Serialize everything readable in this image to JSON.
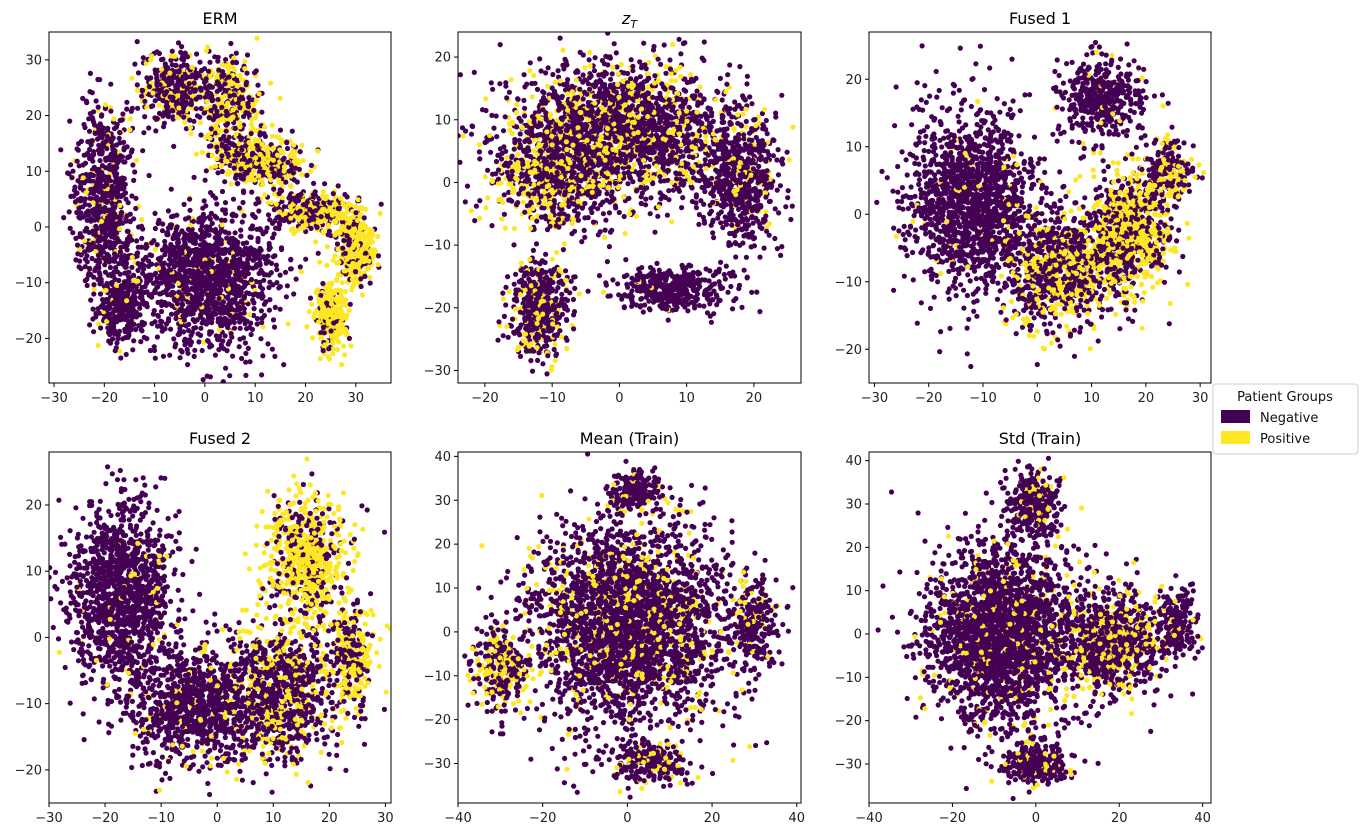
{
  "legend": {
    "title": "Patient Groups",
    "entries": [
      {
        "label": "Negative",
        "color": "#440154"
      },
      {
        "label": "Positive",
        "color": "#fde725"
      }
    ]
  },
  "chart_data": [
    {
      "type": "scatter",
      "title": "ERM",
      "title_math": false,
      "xlim": [
        -31,
        37
      ],
      "ylim": [
        -28,
        35
      ],
      "xticks": [
        -30,
        -20,
        -10,
        0,
        10,
        20,
        30
      ],
      "xtick_labels": [
        "−30",
        "−20",
        "−10",
        "0",
        "10",
        "20",
        "30"
      ],
      "yticks": [
        -20,
        -10,
        0,
        10,
        20,
        30
      ],
      "ytick_labels": [
        "−20",
        "−10",
        "0",
        "10",
        "20",
        "30"
      ],
      "seed": 11,
      "clusters": [
        {
          "cx": 0,
          "cy": -9,
          "sx": 9,
          "sy": 8,
          "n": 1400,
          "pos": 0.05
        },
        {
          "cx": -20,
          "cy": 5,
          "sx": 4,
          "sy": 11,
          "n": 700,
          "pos": 0.12
        },
        {
          "cx": -17,
          "cy": -14,
          "sx": 3,
          "sy": 5,
          "n": 280,
          "pos": 0.05
        },
        {
          "cx": -6,
          "cy": 25,
          "sx": 5,
          "sy": 4,
          "n": 420,
          "pos": 0.25
        },
        {
          "cx": 5,
          "cy": 22,
          "sx": 4,
          "sy": 6,
          "n": 380,
          "pos": 0.55
        },
        {
          "cx": 11,
          "cy": 12,
          "sx": 6,
          "sy": 3,
          "n": 380,
          "pos": 0.5
        },
        {
          "cx": 22,
          "cy": 3,
          "sx": 6,
          "sy": 2.5,
          "n": 360,
          "pos": 0.45
        },
        {
          "cx": 30,
          "cy": -4,
          "sx": 2.5,
          "sy": 4,
          "n": 300,
          "pos": 0.7
        },
        {
          "cx": 25,
          "cy": -16,
          "sx": 2,
          "sy": 4,
          "n": 320,
          "pos": 0.85
        }
      ]
    },
    {
      "type": "scatter",
      "title": "z_T",
      "title_math": true,
      "xlim": [
        -24,
        27
      ],
      "ylim": [
        -32,
        24
      ],
      "xticks": [
        -20,
        -10,
        0,
        10,
        20
      ],
      "xtick_labels": [
        "−20",
        "−10",
        "0",
        "10",
        "20"
      ],
      "yticks": [
        -30,
        -20,
        -10,
        0,
        10,
        20
      ],
      "ytick_labels": [
        "−30",
        "−20",
        "−10",
        "0",
        "10",
        "20"
      ],
      "seed": 23,
      "clusters": [
        {
          "cx": 0,
          "cy": 8,
          "sx": 11,
          "sy": 7,
          "n": 2200,
          "pos": 0.25
        },
        {
          "cx": -10,
          "cy": 0,
          "sx": 6,
          "sy": 6,
          "n": 600,
          "pos": 0.35
        },
        {
          "cx": 18,
          "cy": 0,
          "sx": 4,
          "sy": 7,
          "n": 600,
          "pos": 0.08
        },
        {
          "cx": -12,
          "cy": -20,
          "sx": 3,
          "sy": 5,
          "n": 500,
          "pos": 0.25
        },
        {
          "cx": 8,
          "cy": -17,
          "sx": 6,
          "sy": 2.5,
          "n": 380,
          "pos": 0.03
        }
      ]
    },
    {
      "type": "scatter",
      "title": "Fused 1",
      "title_math": false,
      "xlim": [
        -31,
        32
      ],
      "ylim": [
        -25,
        27
      ],
      "xticks": [
        -30,
        -20,
        -10,
        0,
        10,
        20,
        30
      ],
      "xtick_labels": [
        "−30",
        "−20",
        "−10",
        "0",
        "10",
        "20",
        "30"
      ],
      "yticks": [
        -20,
        -10,
        0,
        10,
        20
      ],
      "ytick_labels": [
        "−20",
        "−10",
        "0",
        "10",
        "20"
      ],
      "seed": 37,
      "clusters": [
        {
          "cx": -12,
          "cy": 2,
          "sx": 8,
          "sy": 9,
          "n": 1500,
          "pos": 0.03
        },
        {
          "cx": 4,
          "cy": -8,
          "sx": 7,
          "sy": 6,
          "n": 900,
          "pos": 0.35
        },
        {
          "cx": 17,
          "cy": -3,
          "sx": 5,
          "sy": 6,
          "n": 900,
          "pos": 0.6
        },
        {
          "cx": 12,
          "cy": 17,
          "sx": 5,
          "sy": 4,
          "n": 450,
          "pos": 0.05
        },
        {
          "cx": 24,
          "cy": 6,
          "sx": 3,
          "sy": 3,
          "n": 250,
          "pos": 0.35
        }
      ]
    },
    {
      "type": "scatter",
      "title": "Fused 2",
      "title_math": false,
      "xlim": [
        -30,
        31
      ],
      "ylim": [
        -25,
        28
      ],
      "xticks": [
        -30,
        -20,
        -10,
        0,
        10,
        20,
        30
      ],
      "xtick_labels": [
        "−30",
        "−20",
        "−10",
        "0",
        "10",
        "20",
        "30"
      ],
      "yticks": [
        -20,
        -10,
        0,
        10,
        20
      ],
      "ytick_labels": [
        "−20",
        "−10",
        "0",
        "10",
        "20"
      ],
      "seed": 41,
      "clusters": [
        {
          "cx": -17,
          "cy": 6,
          "sx": 6,
          "sy": 9,
          "n": 1300,
          "pos": 0.03
        },
        {
          "cx": -4,
          "cy": -10,
          "sx": 8,
          "sy": 6,
          "n": 1000,
          "pos": 0.08
        },
        {
          "cx": 12,
          "cy": -8,
          "sx": 7,
          "sy": 7,
          "n": 900,
          "pos": 0.3
        },
        {
          "cx": 16,
          "cy": 12,
          "sx": 5,
          "sy": 6,
          "n": 700,
          "pos": 0.75
        },
        {
          "cx": 24,
          "cy": -3,
          "sx": 2.5,
          "sy": 5,
          "n": 300,
          "pos": 0.55
        }
      ]
    },
    {
      "type": "scatter",
      "title": "Mean (Train)",
      "title_math": false,
      "xlim": [
        -40,
        41
      ],
      "ylim": [
        -39,
        41
      ],
      "xticks": [
        -40,
        -20,
        0,
        20,
        40
      ],
      "xtick_labels": [
        "−40",
        "−20",
        "0",
        "20",
        "40"
      ],
      "yticks": [
        -30,
        -20,
        -10,
        0,
        10,
        20,
        30,
        40
      ],
      "ytick_labels": [
        "−30",
        "−20",
        "−10",
        "0",
        "10",
        "20",
        "30",
        "40"
      ],
      "seed": 53,
      "clusters": [
        {
          "cx": 0,
          "cy": 2,
          "sx": 15,
          "sy": 15,
          "n": 3000,
          "pos": 0.15
        },
        {
          "cx": -30,
          "cy": -8,
          "sx": 4,
          "sy": 6,
          "n": 300,
          "pos": 0.35
        },
        {
          "cx": 2,
          "cy": 32,
          "sx": 4,
          "sy": 3,
          "n": 200,
          "pos": 0.12
        },
        {
          "cx": 5,
          "cy": -30,
          "sx": 6,
          "sy": 3,
          "n": 250,
          "pos": 0.15
        },
        {
          "cx": 30,
          "cy": 2,
          "sx": 4,
          "sy": 8,
          "n": 250,
          "pos": 0.1
        }
      ]
    },
    {
      "type": "scatter",
      "title": "Std (Train)",
      "title_math": false,
      "xlim": [
        -40,
        42
      ],
      "ylim": [
        -39,
        42
      ],
      "xticks": [
        -40,
        -20,
        0,
        20,
        40
      ],
      "xtick_labels": [
        "−40",
        "−20",
        "0",
        "20",
        "40"
      ],
      "yticks": [
        -30,
        -20,
        -10,
        0,
        10,
        20,
        30,
        40
      ],
      "ytick_labels": [
        "−30",
        "−20",
        "−10",
        "0",
        "10",
        "20",
        "30",
        "40"
      ],
      "seed": 67,
      "clusters": [
        {
          "cx": -8,
          "cy": 0,
          "sx": 12,
          "sy": 13,
          "n": 2600,
          "pos": 0.1
        },
        {
          "cx": 18,
          "cy": -2,
          "sx": 8,
          "sy": 8,
          "n": 900,
          "pos": 0.3
        },
        {
          "cx": 0,
          "cy": 30,
          "sx": 4,
          "sy": 5,
          "n": 300,
          "pos": 0.15
        },
        {
          "cx": 0,
          "cy": -30,
          "sx": 5,
          "sy": 3,
          "n": 300,
          "pos": 0.12
        },
        {
          "cx": 34,
          "cy": 3,
          "sx": 3,
          "sy": 5,
          "n": 200,
          "pos": 0.15
        }
      ]
    }
  ]
}
